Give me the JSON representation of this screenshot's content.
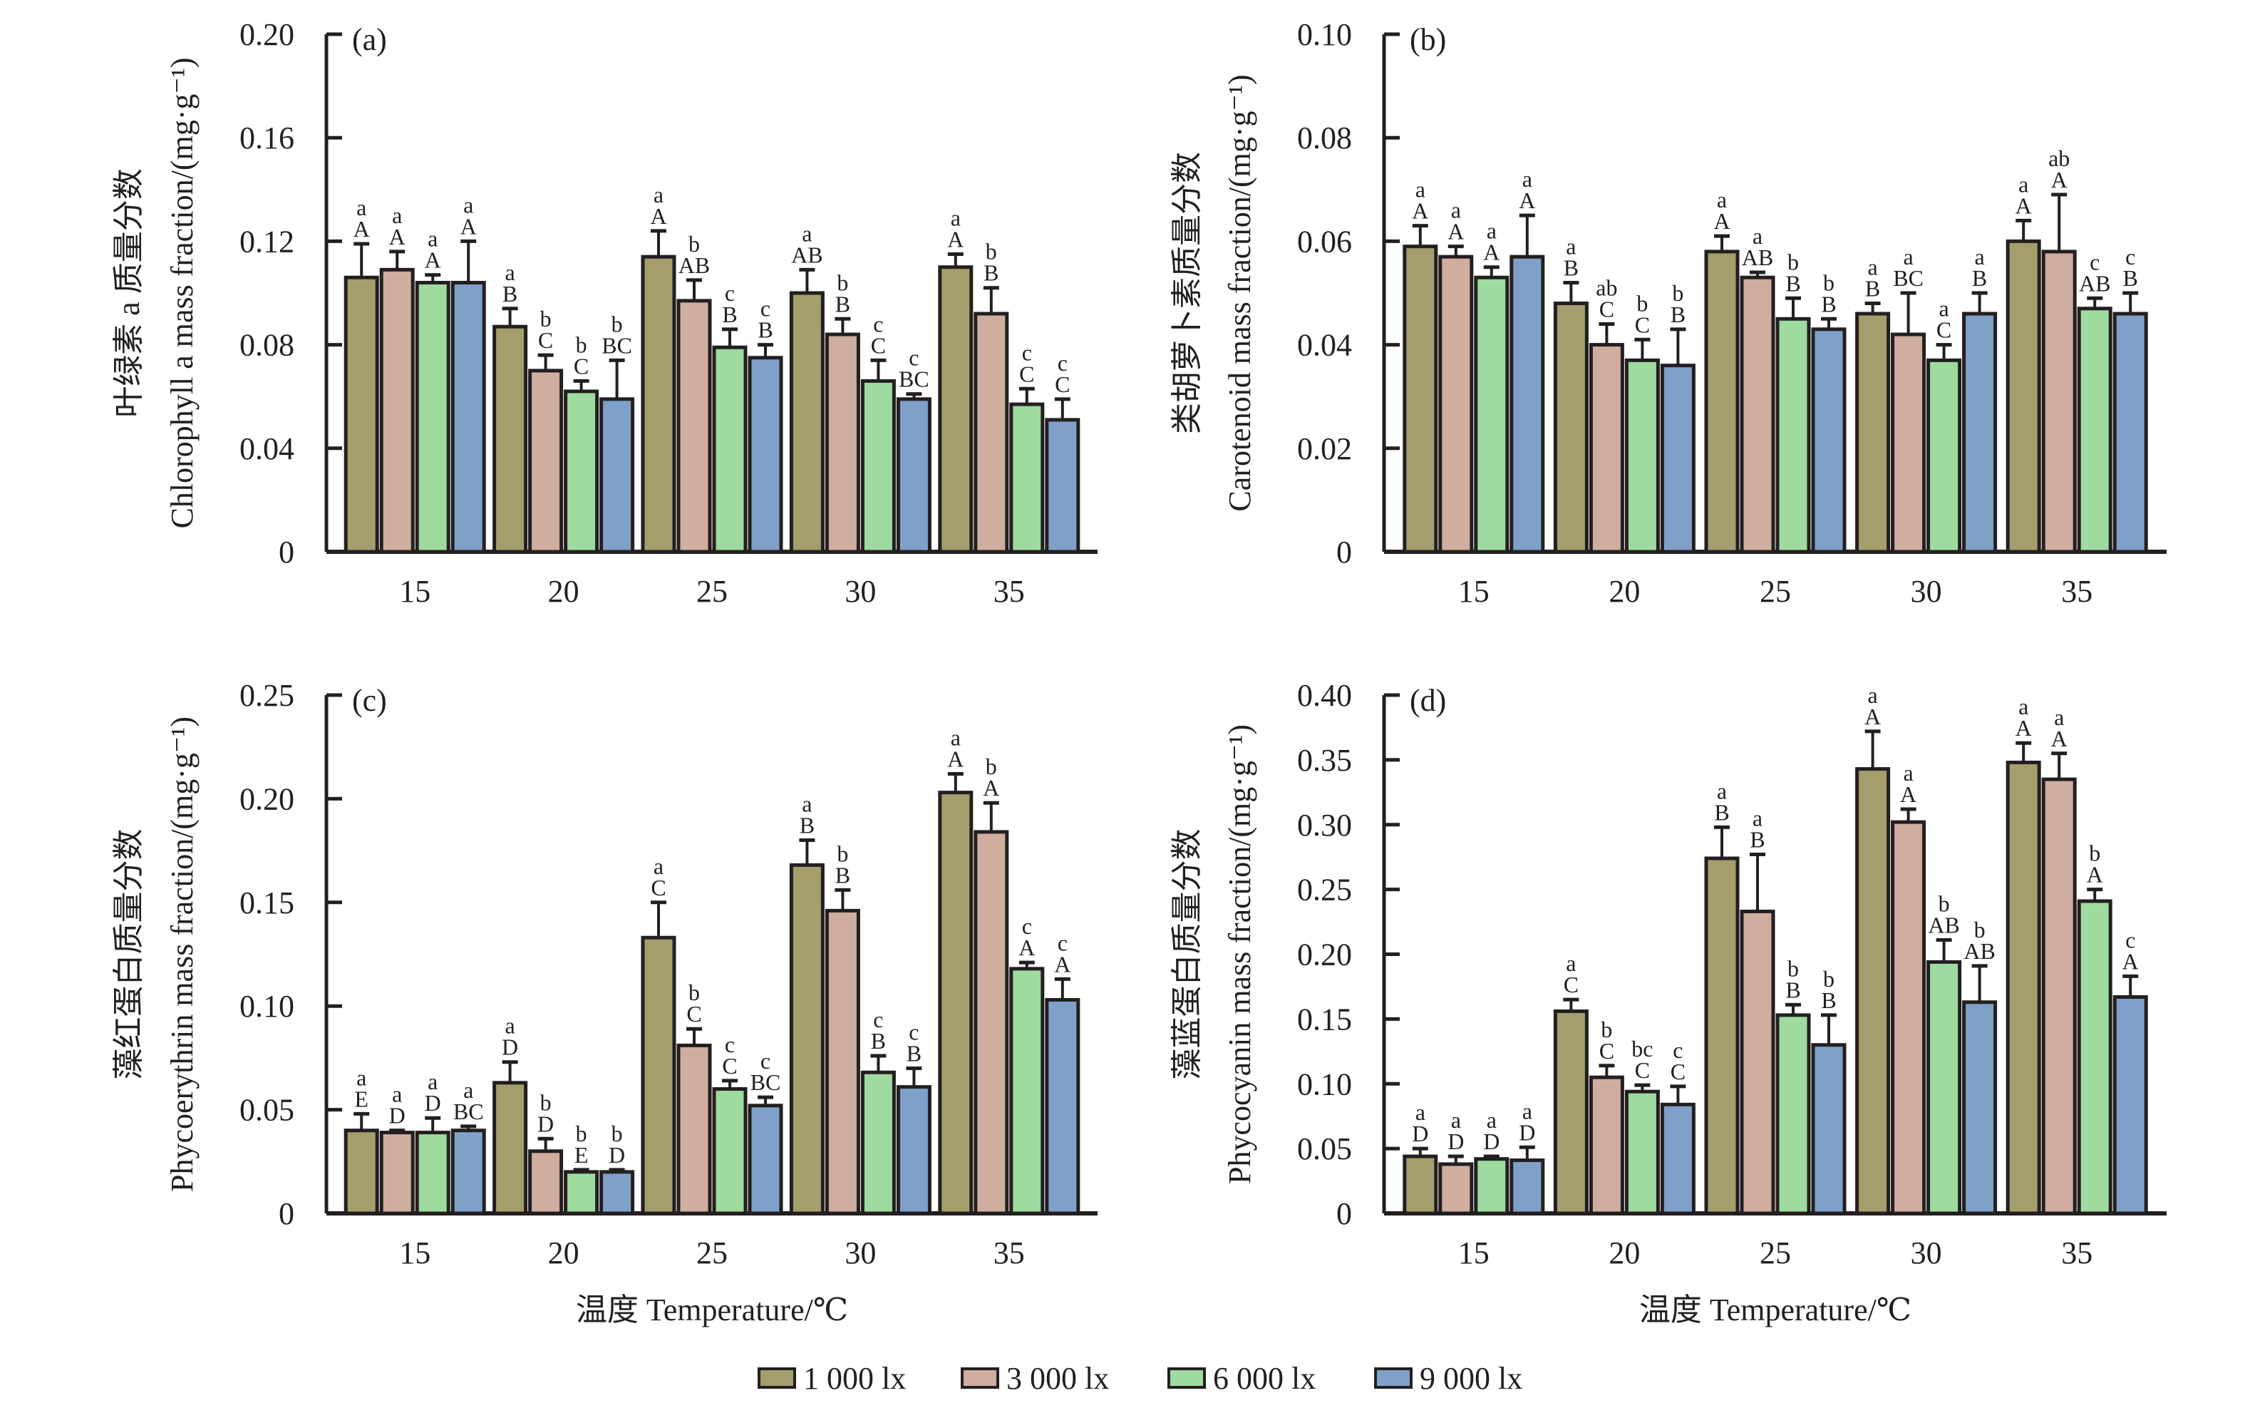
{
  "legend": [
    {
      "label": "1 000 lx",
      "color": "#a39e6c"
    },
    {
      "label": "3 000 lx",
      "color": "#cfaea0"
    },
    {
      "label": "6 000 lx",
      "color": "#9fdb9e"
    },
    {
      "label": "9 000 lx",
      "color": "#7fa1c9"
    }
  ],
  "xlabel": "温度 Temperature/℃",
  "chart_data": [
    {
      "type": "bar",
      "panel": "(a)",
      "ylabel_cn": "叶绿素 a 质量分数",
      "ylabel_en": "Chlorophyll a mass fraction/(mg·g⁻¹)",
      "categories": [
        "15",
        "20",
        "25",
        "30",
        "35"
      ],
      "ylim": [
        0,
        0.2
      ],
      "yticks": [
        "0",
        "0.04",
        "0.08",
        "0.12",
        "0.16",
        "0.20"
      ],
      "series": [
        {
          "name": "1 000 lx",
          "values": [
            0.106,
            0.087,
            0.114,
            0.1,
            0.11
          ],
          "err": [
            0.013,
            0.007,
            0.01,
            0.009,
            0.005
          ],
          "letters": [
            [
              "a",
              "A"
            ],
            [
              "a",
              "B"
            ],
            [
              "a",
              "A"
            ],
            [
              "a",
              "AB"
            ],
            [
              "a",
              "A"
            ]
          ]
        },
        {
          "name": "3 000 lx",
          "values": [
            0.109,
            0.07,
            0.097,
            0.084,
            0.092
          ],
          "err": [
            0.007,
            0.006,
            0.008,
            0.006,
            0.01
          ],
          "letters": [
            [
              "a",
              "A"
            ],
            [
              "b",
              "C"
            ],
            [
              "b",
              "AB"
            ],
            [
              "b",
              "B"
            ],
            [
              "b",
              "B"
            ]
          ]
        },
        {
          "name": "6 000 lx",
          "values": [
            0.104,
            0.062,
            0.079,
            0.066,
            0.057
          ],
          "err": [
            0.003,
            0.004,
            0.007,
            0.008,
            0.006
          ],
          "letters": [
            [
              "a",
              "A"
            ],
            [
              "b",
              "C"
            ],
            [
              "c",
              "B"
            ],
            [
              "c",
              "C"
            ],
            [
              "c",
              "C"
            ]
          ]
        },
        {
          "name": "9 000 lx",
          "values": [
            0.104,
            0.059,
            0.075,
            0.059,
            0.051
          ],
          "err": [
            0.016,
            0.015,
            0.005,
            0.002,
            0.008
          ],
          "letters": [
            [
              "a",
              "A"
            ],
            [
              "b",
              "BC"
            ],
            [
              "c",
              "B"
            ],
            [
              "c",
              "BC"
            ],
            [
              "c",
              "C"
            ]
          ]
        }
      ]
    },
    {
      "type": "bar",
      "panel": "(b)",
      "ylabel_cn": "类胡萝卜素质量分数",
      "ylabel_en": "Carotenoid mass fraction/(mg·g⁻¹)",
      "categories": [
        "15",
        "20",
        "25",
        "30",
        "35"
      ],
      "ylim": [
        0,
        0.1
      ],
      "yticks": [
        "0",
        "0.02",
        "0.04",
        "0.06",
        "0.08",
        "0.10"
      ],
      "series": [
        {
          "name": "1 000 lx",
          "values": [
            0.059,
            0.048,
            0.058,
            0.046,
            0.06
          ],
          "err": [
            0.004,
            0.004,
            0.003,
            0.002,
            0.004
          ],
          "letters": [
            [
              "a",
              "A"
            ],
            [
              "a",
              "B"
            ],
            [
              "a",
              "A"
            ],
            [
              "a",
              "B"
            ],
            [
              "a",
              "A"
            ]
          ]
        },
        {
          "name": "3 000 lx",
          "values": [
            0.057,
            0.04,
            0.053,
            0.042,
            0.058
          ],
          "err": [
            0.002,
            0.004,
            0.001,
            0.008,
            0.011
          ],
          "letters": [
            [
              "a",
              "A"
            ],
            [
              "ab",
              "C"
            ],
            [
              "a",
              "AB"
            ],
            [
              "a",
              "BC"
            ],
            [
              "ab",
              "A"
            ]
          ]
        },
        {
          "name": "6 000 lx",
          "values": [
            0.053,
            0.037,
            0.045,
            0.037,
            0.047
          ],
          "err": [
            0.002,
            0.004,
            0.004,
            0.003,
            0.002
          ],
          "letters": [
            [
              "a",
              "A"
            ],
            [
              "b",
              "C"
            ],
            [
              "b",
              "B"
            ],
            [
              "a",
              "C"
            ],
            [
              "c",
              "AB"
            ]
          ]
        },
        {
          "name": "9 000 lx",
          "values": [
            0.057,
            0.036,
            0.043,
            0.046,
            0.046
          ],
          "err": [
            0.008,
            0.007,
            0.002,
            0.004,
            0.004
          ],
          "letters": [
            [
              "a",
              "A"
            ],
            [
              "b",
              "B"
            ],
            [
              "b",
              "B"
            ],
            [
              "a",
              "B"
            ],
            [
              "c",
              "B"
            ]
          ]
        }
      ]
    },
    {
      "type": "bar",
      "panel": "(c)",
      "ylabel_cn": "藻红蛋白质量分数",
      "ylabel_en": "Phycoerythrin mass fraction/(mg·g⁻¹)",
      "categories": [
        "15",
        "20",
        "25",
        "30",
        "35"
      ],
      "ylim": [
        0,
        0.25
      ],
      "yticks": [
        "0",
        "0.05",
        "0.10",
        "0.15",
        "0.20",
        "0.25"
      ],
      "series": [
        {
          "name": "1 000 lx",
          "values": [
            0.04,
            0.063,
            0.133,
            0.168,
            0.203
          ],
          "err": [
            0.008,
            0.01,
            0.017,
            0.012,
            0.009
          ],
          "letters": [
            [
              "a",
              "E"
            ],
            [
              "a",
              "D"
            ],
            [
              "a",
              "C"
            ],
            [
              "a",
              "B"
            ],
            [
              "a",
              "A"
            ]
          ]
        },
        {
          "name": "3 000 lx",
          "values": [
            0.039,
            0.03,
            0.081,
            0.146,
            0.184
          ],
          "err": [
            0.001,
            0.006,
            0.008,
            0.01,
            0.014
          ],
          "letters": [
            [
              "a",
              "D"
            ],
            [
              "b",
              "D"
            ],
            [
              "b",
              "C"
            ],
            [
              "b",
              "B"
            ],
            [
              "b",
              "A"
            ]
          ]
        },
        {
          "name": "6 000 lx",
          "values": [
            0.039,
            0.02,
            0.06,
            0.068,
            0.118
          ],
          "err": [
            0.007,
            0.001,
            0.004,
            0.008,
            0.003
          ],
          "letters": [
            [
              "a",
              "D"
            ],
            [
              "b",
              "E"
            ],
            [
              "c",
              "C"
            ],
            [
              "c",
              "B"
            ],
            [
              "c",
              "A"
            ]
          ]
        },
        {
          "name": "9 000 lx",
          "values": [
            0.04,
            0.02,
            0.052,
            0.061,
            0.103
          ],
          "err": [
            0.002,
            0.001,
            0.004,
            0.009,
            0.01
          ],
          "letters": [
            [
              "a",
              "BC"
            ],
            [
              "b",
              "D"
            ],
            [
              "c",
              "BC"
            ],
            [
              "c",
              "B"
            ],
            [
              "c",
              "A"
            ]
          ]
        }
      ]
    },
    {
      "type": "bar",
      "panel": "(d)",
      "ylabel_cn": "藻蓝蛋白质量分数",
      "ylabel_en": "Phycocyanin mass fraction/(mg·g⁻¹)",
      "categories": [
        "15",
        "20",
        "25",
        "30",
        "35"
      ],
      "ylim": [
        0,
        0.4
      ],
      "yticks": [
        "0",
        "0.05",
        "0.10",
        "0.15",
        "0.20",
        "0.25",
        "0.30",
        "0.35",
        "0.40"
      ],
      "series": [
        {
          "name": "1 000 lx",
          "values": [
            0.044,
            0.156,
            0.274,
            0.343,
            0.348
          ],
          "err": [
            0.006,
            0.009,
            0.024,
            0.029,
            0.015
          ],
          "letters": [
            [
              "a",
              "D"
            ],
            [
              "a",
              "C"
            ],
            [
              "a",
              "B"
            ],
            [
              "a",
              "A"
            ],
            [
              "a",
              "A"
            ]
          ]
        },
        {
          "name": "3 000 lx",
          "values": [
            0.038,
            0.105,
            0.233,
            0.302,
            0.335
          ],
          "err": [
            0.006,
            0.009,
            0.044,
            0.01,
            0.02
          ],
          "letters": [
            [
              "a",
              "D"
            ],
            [
              "b",
              "C"
            ],
            [
              "a",
              "B"
            ],
            [
              "a",
              "A"
            ],
            [
              "a",
              "A"
            ]
          ]
        },
        {
          "name": "6 000 lx",
          "values": [
            0.042,
            0.094,
            0.153,
            0.194,
            0.241
          ],
          "err": [
            0.002,
            0.005,
            0.008,
            0.017,
            0.009
          ],
          "letters": [
            [
              "a",
              "D"
            ],
            [
              "bc",
              "C"
            ],
            [
              "b",
              "B"
            ],
            [
              "b",
              "AB"
            ],
            [
              "b",
              "A"
            ]
          ]
        },
        {
          "name": "9 000 lx",
          "values": [
            0.041,
            0.084,
            0.13,
            0.163,
            0.167
          ],
          "err": [
            0.01,
            0.014,
            0.023,
            0.028,
            0.016
          ],
          "letters": [
            [
              "a",
              "D"
            ],
            [
              "c",
              "C"
            ],
            [
              "b",
              "B"
            ],
            [
              "b",
              "AB"
            ],
            [
              "c",
              "A"
            ]
          ]
        }
      ]
    }
  ]
}
